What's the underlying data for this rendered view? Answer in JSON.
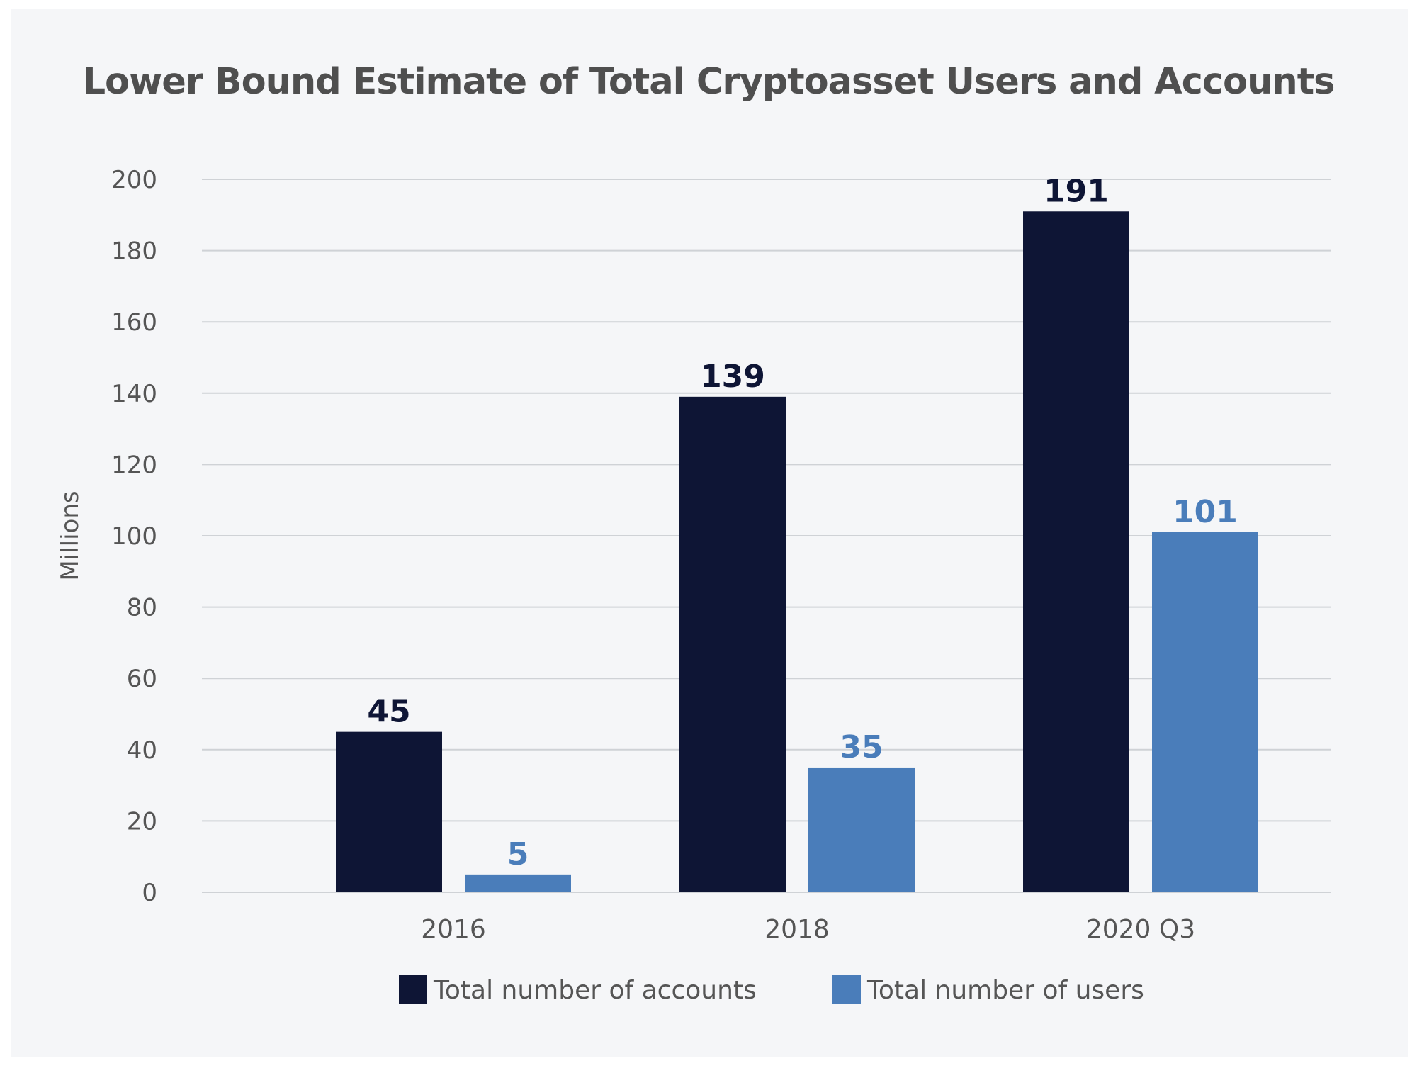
{
  "chart_data": {
    "type": "bar",
    "title": "Lower Bound Estimate of Total Cryptoasset Users and Accounts",
    "xlabel": "",
    "ylabel": "Millions",
    "categories": [
      "2016",
      "2018",
      "2020 Q3"
    ],
    "series": [
      {
        "name": "Total number of accounts",
        "values": [
          45,
          139,
          191
        ],
        "color": "#0e1535"
      },
      {
        "name": "Total number of users",
        "values": [
          5,
          35,
          101
        ],
        "color": "#4a7dba"
      }
    ],
    "ylim": [
      0,
      200
    ],
    "yticks": [
      "0",
      "20",
      "40",
      "60",
      "80",
      "100",
      "120",
      "140",
      "160",
      "180",
      "200"
    ],
    "grid": true,
    "legend_position": "bottom",
    "data_labels": [
      [
        "45",
        "139",
        "191"
      ],
      [
        "5",
        "35",
        "101"
      ]
    ]
  }
}
